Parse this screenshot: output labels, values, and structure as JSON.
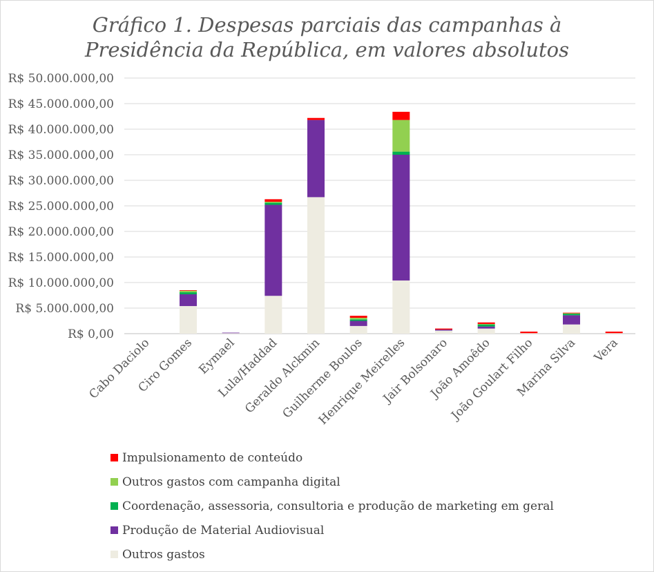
{
  "chart_data": {
    "type": "bar",
    "stacked": true,
    "title": "Gráfico 1. Despesas parciais das campanhas à Presidência da República, em valores absolutos",
    "title_lines": [
      "Gráfico 1. Despesas parciais das campanhas à",
      "Presidência da República, em valores absolutos"
    ],
    "xlabel": "",
    "ylabel": "",
    "ylim": [
      0,
      50000000
    ],
    "yticks": [
      0,
      5000000,
      10000000,
      15000000,
      20000000,
      25000000,
      30000000,
      35000000,
      40000000,
      45000000,
      50000000
    ],
    "ytick_labels": [
      "R$ 0,00",
      "R$ 5.000.000,00",
      "R$ 10.000.000,00",
      "R$ 15.000.000,00",
      "R$ 20.000.000,00",
      "R$ 25.000.000,00",
      "R$ 30.000.000,00",
      "R$ 35.000.000,00",
      "R$ 40.000.000,00",
      "R$ 45.000.000,00",
      "R$ 50.000.000,00"
    ],
    "grid": true,
    "legend_position": "bottom",
    "categories": [
      "Cabo Daciolo",
      "Ciro Gomes",
      "Eymael",
      "Lula/Haddad",
      "Geraldo Alckmin",
      "Guilherme Boulos",
      "Henrique Meirelles",
      "Jair Bolsonaro",
      "João Amoêdo",
      "João Goulart Filho",
      "Marina Silva",
      "Vera"
    ],
    "series": [
      {
        "name": "Outros gastos",
        "color": "#eeece1",
        "values": [
          0,
          5400000,
          100000,
          7400000,
          26700000,
          1500000,
          10400000,
          600000,
          1000000,
          100000,
          1800000,
          100000
        ]
      },
      {
        "name": "Produção de Material Audiovisual",
        "color": "#7030a0",
        "values": [
          0,
          2300000,
          100000,
          17800000,
          15100000,
          1000000,
          24600000,
          200000,
          400000,
          0,
          1800000,
          0
        ]
      },
      {
        "name": "Coordenação, assessoria, consultoria e produção de marketing em geral",
        "color": "#00b050",
        "values": [
          0,
          400000,
          0,
          400000,
          0,
          300000,
          600000,
          0,
          400000,
          0,
          300000,
          0
        ]
      },
      {
        "name": "Outros gastos com campanha digital",
        "color": "#92d050",
        "values": [
          0,
          300000,
          0,
          200000,
          0,
          300000,
          6200000,
          0,
          100000,
          0,
          100000,
          0
        ]
      },
      {
        "name": "Impulsionamento de conteúdo",
        "color": "#ff0000",
        "values": [
          0,
          100000,
          0,
          500000,
          400000,
          400000,
          1600000,
          200000,
          300000,
          300000,
          100000,
          300000
        ]
      }
    ],
    "legend_order": [
      "Impulsionamento de conteúdo",
      "Outros gastos com campanha digital",
      "Coordenação, assessoria, consultoria e produção de marketing em geral",
      "Produção de Material Audiovisual",
      "Outros gastos"
    ]
  }
}
